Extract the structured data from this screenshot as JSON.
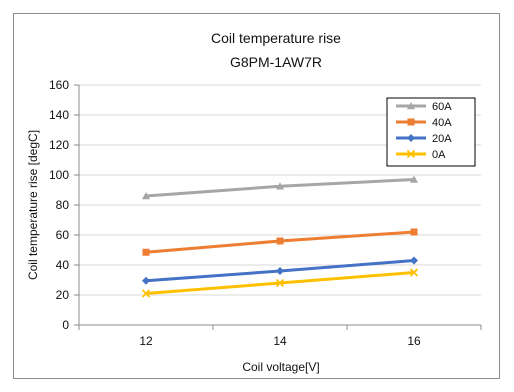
{
  "chart_data": {
    "type": "line",
    "title": "Coil temperature rise",
    "subtitle": "G8PM-1AW7R",
    "xlabel": "Coil voltage[V]",
    "ylabel": "Coil temperature rise [degC]",
    "x": [
      12,
      14,
      16
    ],
    "ylim": [
      0,
      160
    ],
    "yticks": [
      0,
      20,
      40,
      60,
      80,
      100,
      120,
      140,
      160
    ],
    "grid": true,
    "legend_position": "top-right",
    "series": [
      {
        "name": "60A",
        "values": [
          86,
          92.5,
          97
        ],
        "color": "#a6a6a6",
        "marker": "triangle"
      },
      {
        "name": "40A",
        "values": [
          48.5,
          56,
          62
        ],
        "color": "#ed7d31",
        "marker": "square"
      },
      {
        "name": "20A",
        "values": [
          29.5,
          36,
          43
        ],
        "color": "#4472c4",
        "marker": "diamond"
      },
      {
        "name": "0A",
        "values": [
          21,
          28,
          35
        ],
        "color": "#ffc000",
        "marker": "x"
      }
    ]
  }
}
